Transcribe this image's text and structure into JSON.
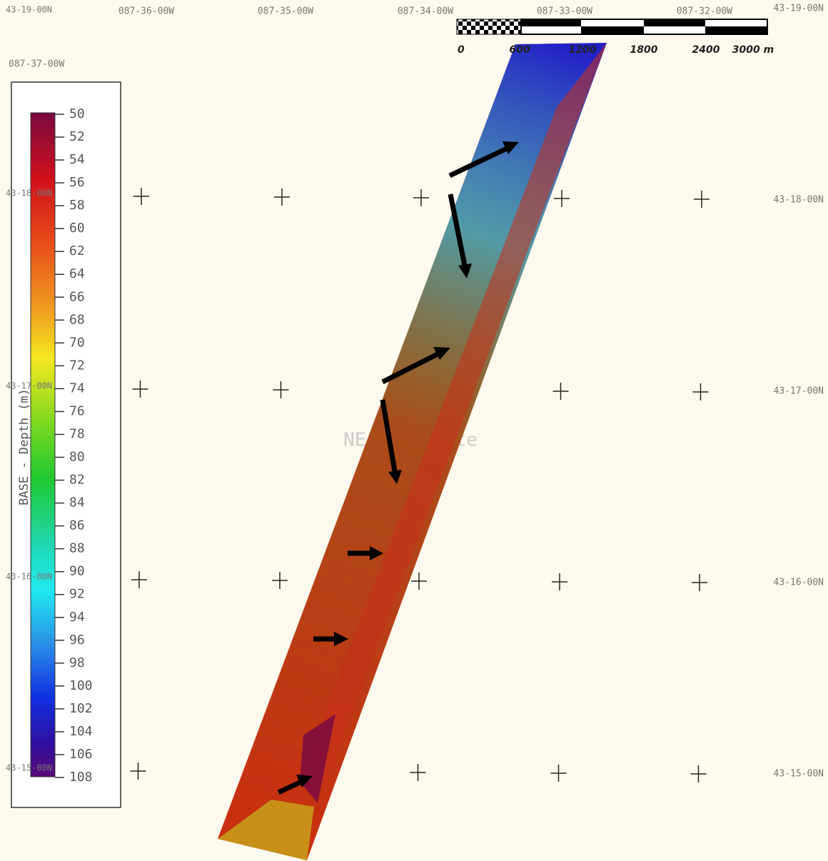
{
  "map": {
    "top_labels": [
      "087-36-00W",
      "087-35-00W",
      "087-34-00W",
      "087-33-00W",
      "087-32-00W"
    ],
    "corner_label": "087-37-00W",
    "right_labels": [
      "43-19-00N",
      "43-18-00N",
      "43-17-00N",
      "43-16-00N",
      "43-15-00N"
    ],
    "left_labels": [
      "43-19-00N",
      "43-18-00N",
      "43-17-00N",
      "43-16-00N",
      "43-15-00N"
    ],
    "watermark": "NE_Reef_Site",
    "scale_bar": {
      "labels": [
        "0",
        "600",
        "1200",
        "1800",
        "2400",
        "3000 m"
      ]
    },
    "colorbar": {
      "title": "BASE - Depth (m)",
      "ticks": [
        50,
        52,
        54,
        56,
        58,
        60,
        62,
        64,
        66,
        68,
        70,
        72,
        74,
        76,
        78,
        80,
        82,
        84,
        86,
        88,
        90,
        92,
        94,
        96,
        98,
        100,
        102,
        104,
        106,
        108
      ]
    }
  }
}
